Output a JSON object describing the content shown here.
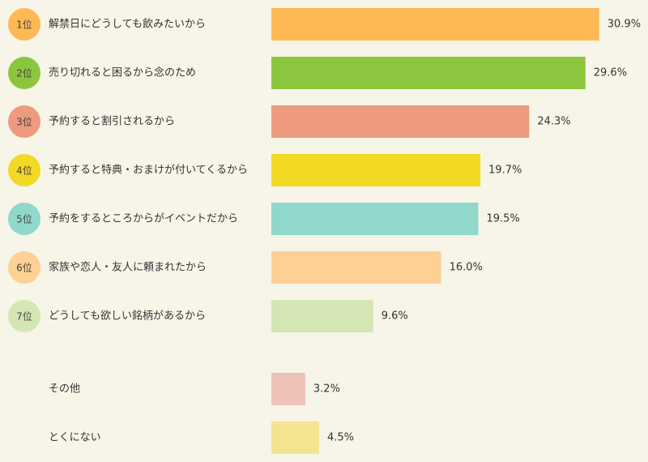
{
  "chart_data": {
    "type": "bar",
    "categories": [
      "解禁日にどうしても飲みたいから",
      "売り切れると困るから念のため",
      "予約すると割引されるから",
      "予約すると特典・おまけが付いてくるから",
      "予約をするところからがイベントだから",
      "家族や恋人・友人に頼まれたから",
      "どうしても欲しい銘柄があるから",
      "その他",
      "とくにない"
    ],
    "ranks": [
      "1位",
      "2位",
      "3位",
      "4位",
      "5位",
      "6位",
      "7位",
      null,
      null
    ],
    "values": [
      30.9,
      29.6,
      24.3,
      19.7,
      19.5,
      16.0,
      9.6,
      3.2,
      4.5
    ],
    "value_labels": [
      "30.9%",
      "29.6%",
      "24.3%",
      "19.7%",
      "19.5%",
      "16.0%",
      "9.6%",
      "3.2%",
      "4.5%"
    ],
    "colors": [
      "#fdb954",
      "#8cc63f",
      "#ee9a7e",
      "#f2d923",
      "#8fd8cb",
      "#fdd194",
      "#d5e6b5",
      "#eec2b8",
      "#f3e590"
    ]
  }
}
